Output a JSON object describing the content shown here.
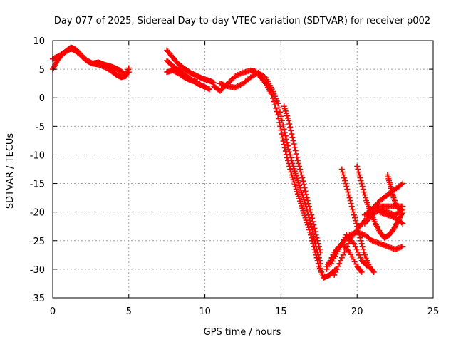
{
  "chart_data": {
    "type": "scatter",
    "title": "Day 077 of 2025, Sidereal Day-to-day VTEC variation (SDTVAR) for receiver p002",
    "xlabel": "GPS time / hours",
    "ylabel": "SDTVAR / TECUs",
    "xlim": [
      0,
      25
    ],
    "ylim": [
      -35,
      10
    ],
    "x_ticks": [
      0,
      5,
      10,
      15,
      20,
      25
    ],
    "y_ticks": [
      -35,
      -30,
      -25,
      -20,
      -15,
      -10,
      -5,
      0,
      5,
      10
    ],
    "grid": true,
    "marker": "plus",
    "color": "#ff0000",
    "series": [
      {
        "x": [
          0.0,
          0.3,
          0.6,
          0.9,
          1.2,
          1.4,
          1.7,
          2.0,
          2.3,
          2.6,
          3.0,
          3.4,
          3.8,
          4.1,
          4.4,
          4.7,
          5.0
        ],
        "y": [
          5.0,
          6.5,
          7.5,
          8.2,
          8.8,
          8.6,
          8.0,
          7.0,
          6.4,
          6.0,
          6.2,
          5.8,
          5.5,
          5.2,
          4.8,
          4.2,
          4.5
        ]
      },
      {
        "x": [
          0.0,
          0.4,
          0.8,
          1.2,
          1.5,
          1.9,
          2.2,
          2.6,
          3.0,
          3.5,
          3.9,
          4.2,
          4.5,
          4.8,
          5.0
        ],
        "y": [
          6.8,
          7.3,
          8.0,
          8.6,
          8.2,
          7.4,
          6.6,
          6.0,
          5.8,
          5.3,
          4.6,
          4.0,
          3.6,
          3.8,
          5.2
        ]
      },
      {
        "x": [
          7.5,
          7.9,
          8.3,
          8.7,
          9.1,
          9.5,
          9.9,
          10.3,
          10.6
        ],
        "y": [
          8.3,
          7.0,
          5.8,
          5.0,
          4.3,
          3.8,
          3.3,
          3.0,
          2.6
        ]
      },
      {
        "x": [
          7.5,
          7.9,
          8.3,
          8.7,
          9.1,
          9.5,
          9.9,
          10.3
        ],
        "y": [
          6.5,
          5.5,
          4.8,
          4.0,
          3.2,
          2.5,
          2.0,
          1.5
        ]
      },
      {
        "x": [
          7.5,
          7.9,
          8.3,
          8.7,
          9.1,
          9.5
        ],
        "y": [
          4.5,
          4.8,
          4.2,
          3.5,
          3.0,
          2.8
        ]
      },
      {
        "x": [
          10.6,
          11.0,
          11.5,
          12.0,
          12.5,
          13.0,
          13.3,
          13.6,
          14.0,
          14.4,
          14.8,
          15.1,
          15.4,
          15.7,
          16.0,
          16.3,
          16.6,
          16.9,
          17.2,
          17.5,
          17.8,
          18.2,
          18.6
        ],
        "y": [
          2.0,
          1.2,
          2.5,
          3.8,
          4.4,
          4.8,
          4.6,
          3.8,
          2.5,
          0.5,
          -3.0,
          -7.0,
          -10.5,
          -13.5,
          -16.0,
          -18.5,
          -21.0,
          -23.5,
          -26.5,
          -29.5,
          -31.5,
          -31.0,
          -30.0
        ]
      },
      {
        "x": [
          11.0,
          11.5,
          12.0,
          12.5,
          13.0,
          13.5,
          14.0,
          14.4,
          14.8,
          15.2,
          15.5,
          15.8,
          16.1,
          16.4,
          16.7,
          17.0,
          17.3,
          17.6
        ],
        "y": [
          2.5,
          2.0,
          1.8,
          2.5,
          3.6,
          4.4,
          3.5,
          1.5,
          -1.0,
          -5.5,
          -9.0,
          -12.0,
          -14.5,
          -17.0,
          -19.5,
          -22.5,
          -26.0,
          -29.0
        ]
      },
      {
        "x": [
          15.2,
          15.5,
          15.8,
          16.1,
          16.4,
          16.7,
          17.0,
          17.3,
          17.6
        ],
        "y": [
          -1.5,
          -4.0,
          -7.5,
          -11.0,
          -14.0,
          -17.5,
          -20.5,
          -24.0,
          -27.0
        ]
      },
      {
        "x": [
          18.0,
          18.5,
          19.0,
          19.5,
          20.0,
          20.3
        ],
        "y": [
          -30.0,
          -27.0,
          -25.5,
          -27.0,
          -29.5,
          -30.5
        ]
      },
      {
        "x": [
          18.3,
          18.8,
          19.3,
          19.8,
          20.3,
          20.7
        ],
        "y": [
          -29.0,
          -26.5,
          -24.0,
          -25.5,
          -28.5,
          -29.5
        ]
      },
      {
        "x": [
          18.5,
          19.0,
          19.5,
          20.0,
          20.5,
          21.0,
          21.5,
          22.0,
          22.5,
          23.0
        ],
        "y": [
          -31.0,
          -28.0,
          -25.0,
          -23.0,
          -21.5,
          -19.5,
          -18.0,
          -17.0,
          -16.0,
          -15.0
        ]
      },
      {
        "x": [
          18.0,
          18.5,
          19.0,
          19.5,
          20.0,
          20.5,
          21.0,
          21.5,
          22.0,
          22.5,
          23.0
        ],
        "y": [
          -29.5,
          -27.5,
          -25.5,
          -24.0,
          -23.5,
          -24.0,
          -25.0,
          -25.5,
          -26.0,
          -26.5,
          -26.0
        ]
      },
      {
        "x": [
          19.0,
          19.3,
          19.6,
          19.9,
          20.2,
          20.5,
          20.8,
          21.1
        ],
        "y": [
          -12.5,
          -15.5,
          -18.5,
          -21.5,
          -24.5,
          -27.5,
          -29.5,
          -30.5
        ]
      },
      {
        "x": [
          20.0,
          20.3,
          20.6,
          20.9,
          21.2,
          21.5,
          21.8,
          22.1,
          22.4,
          22.7,
          23.0
        ],
        "y": [
          -12.0,
          -15.0,
          -18.0,
          -20.0,
          -22.0,
          -23.5,
          -24.5,
          -24.0,
          -23.0,
          -21.5,
          -20.0
        ]
      },
      {
        "x": [
          20.5,
          21.0,
          21.5,
          22.0,
          22.5,
          23.0
        ],
        "y": [
          -20.5,
          -19.5,
          -19.0,
          -19.0,
          -19.0,
          -19.0
        ]
      },
      {
        "x": [
          20.5,
          21.0,
          21.5,
          22.0,
          22.5,
          23.0
        ],
        "y": [
          -22.0,
          -20.5,
          -19.5,
          -20.0,
          -20.5,
          -19.5
        ]
      },
      {
        "x": [
          21.5,
          22.0,
          22.5,
          23.0
        ],
        "y": [
          -20.0,
          -20.5,
          -21.0,
          -22.0
        ]
      },
      {
        "x": [
          22.0,
          22.2,
          22.4,
          22.6,
          22.8
        ],
        "y": [
          -13.5,
          -15.5,
          -17.5,
          -19.0,
          -19.5
        ]
      }
    ]
  }
}
